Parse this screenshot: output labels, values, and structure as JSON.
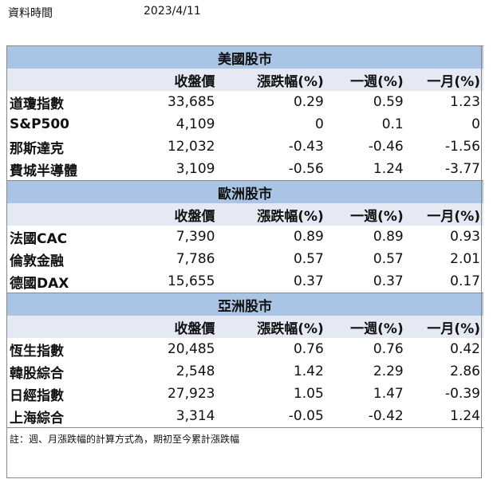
{
  "meta": {
    "label": "資料時間",
    "date": "2023/4/11"
  },
  "columns": [
    "收盤價",
    "漲跌幅(%)",
    "一週(%)",
    "一月(%)"
  ],
  "sections": [
    {
      "title": "美國股市",
      "rows": [
        {
          "name": "道瓊指數",
          "close": "33,685",
          "change": "0.29",
          "week": "0.59",
          "month": "1.23"
        },
        {
          "name": "S&P500",
          "close": "4,109",
          "change": "0",
          "week": "0.1",
          "month": "0"
        },
        {
          "name": "那斯達克",
          "close": "12,032",
          "change": "-0.43",
          "week": "-0.46",
          "month": "-1.56"
        },
        {
          "name": "費城半導體",
          "close": "3,109",
          "change": "-0.56",
          "week": "1.24",
          "month": "-3.77"
        }
      ]
    },
    {
      "title": "歐洲股市",
      "rows": [
        {
          "name": "法國CAC",
          "close": "7,390",
          "change": "0.89",
          "week": "0.89",
          "month": "0.93"
        },
        {
          "name": "倫敦金融",
          "close": "7,786",
          "change": "0.57",
          "week": "0.57",
          "month": "2.01"
        },
        {
          "name": "德國DAX",
          "close": "15,655",
          "change": "0.37",
          "week": "0.37",
          "month": "0.17"
        }
      ]
    },
    {
      "title": "亞洲股市",
      "rows": [
        {
          "name": "恆生指數",
          "close": "20,485",
          "change": "0.76",
          "week": "0.76",
          "month": "0.42"
        },
        {
          "name": "韓股綜合",
          "close": "2,548",
          "change": "1.42",
          "week": "2.29",
          "month": "2.86"
        },
        {
          "name": "日經指數",
          "close": "27,923",
          "change": "1.05",
          "week": "1.47",
          "month": "-0.39"
        },
        {
          "name": "上海綜合",
          "close": "3,314",
          "change": "-0.05",
          "week": "-0.42",
          "month": "1.24"
        }
      ]
    }
  ],
  "note": "註：週、月漲跌幅的計算方式為，期初至今累計漲跌幅",
  "colors": {
    "section_bg": "#a9c4e4",
    "header_bg": "#e4e9f3",
    "border": "#888888"
  }
}
